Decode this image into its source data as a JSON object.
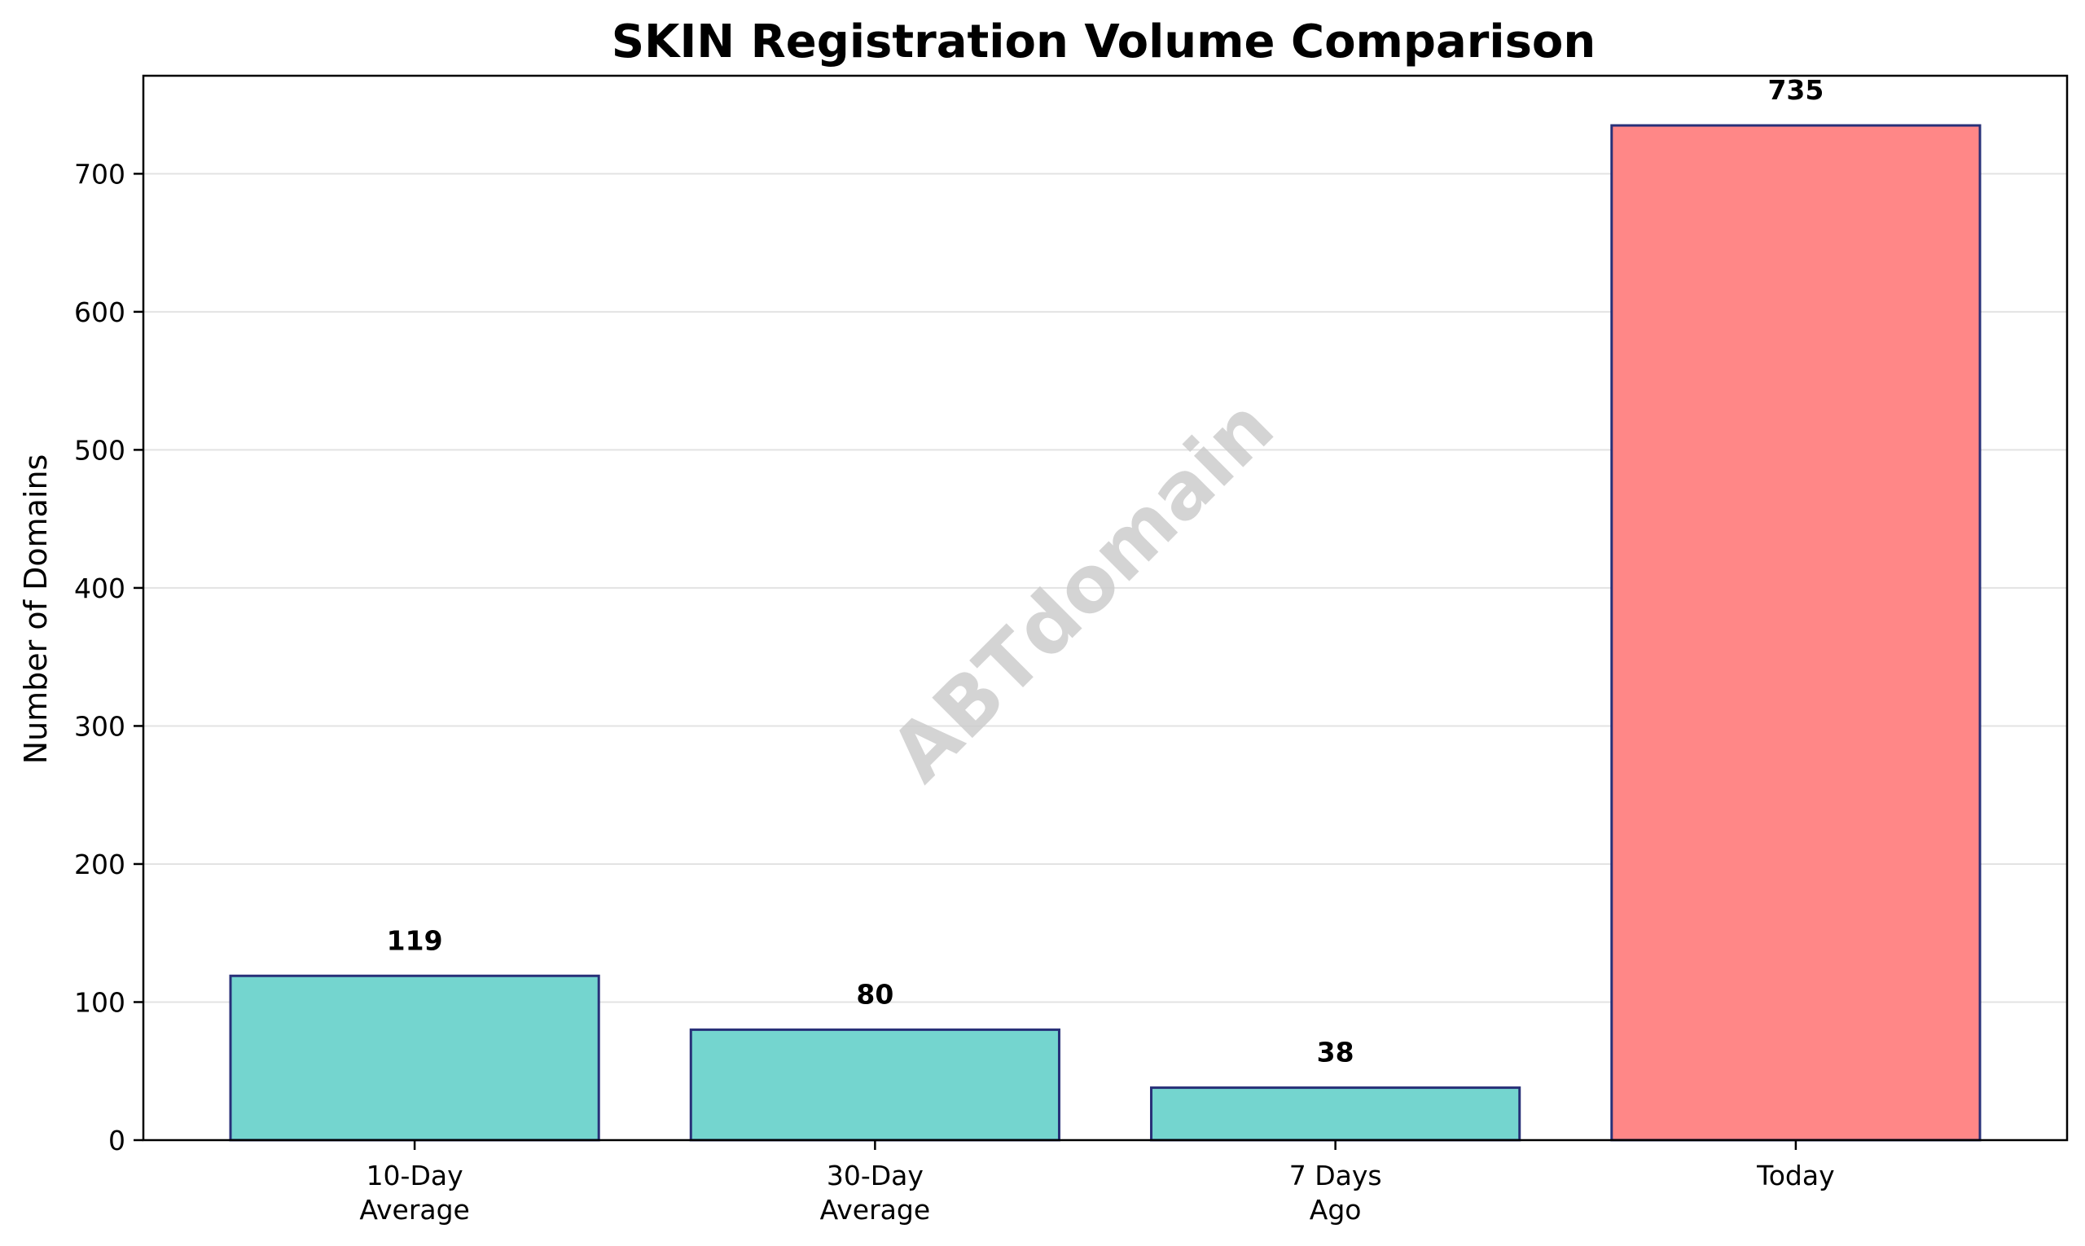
{
  "chart_data": {
    "type": "bar",
    "title": "SKIN Registration Volume Comparison",
    "xlabel": "",
    "ylabel": "Number of Domains",
    "categories": [
      [
        "10-Day",
        "Average"
      ],
      [
        "30-Day",
        "Average"
      ],
      [
        "7 Days",
        "Ago"
      ],
      [
        "Today"
      ]
    ],
    "values": [
      119,
      80,
      38,
      735
    ],
    "value_labels": [
      "119",
      "80",
      "38",
      "735"
    ],
    "bar_colors": [
      "#74d5cf",
      "#74d5cf",
      "#74d5cf",
      "#ff8787"
    ],
    "edge_color": "#283078",
    "ylim": [
      0,
      771
    ],
    "yticks": [
      0,
      100,
      200,
      300,
      400,
      500,
      600,
      700
    ],
    "grid": "y",
    "legend": "none",
    "watermark": "ABTdomain"
  }
}
